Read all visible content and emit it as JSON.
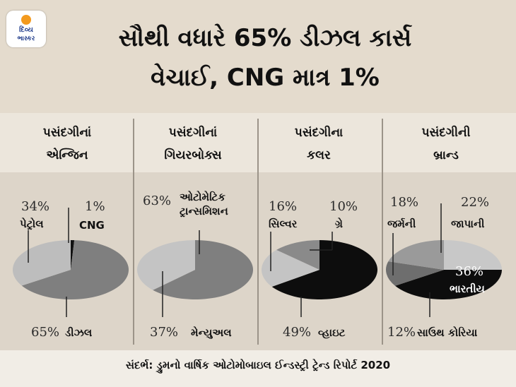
{
  "logo": {
    "line1": "દિવ્ય",
    "line2": "ભાસ્કર"
  },
  "title": {
    "line1": "સૌથી વધારે 65% ડીઝલ કાર્સ",
    "line2": "વેચાઈ, CNG માત્ર 1%"
  },
  "columns": [
    {
      "heading": [
        "પસંદગીનાં",
        "એન્જિન"
      ]
    },
    {
      "heading": [
        "પસંદગીનાં",
        "ગિયરબોક્સ"
      ]
    },
    {
      "heading": [
        "પસંદગીના",
        "કલર"
      ]
    },
    {
      "heading": [
        "પસંદગીની",
        "બ્રાન્ડ"
      ]
    }
  ],
  "source": "સંદર્ભ: ડ્રુમનો વાર્ષિક ઓટોમોબાઇલ ઈન્ડસ્ટ્રી ટ્રેન્ડ રિપોર્ટ 2020",
  "chart_data": [
    {
      "type": "pie",
      "title": "પસંદગીનાં એન્જિન",
      "slices": [
        {
          "label": "પેટ્રોલ",
          "value": 34,
          "pct_text": "34%",
          "color": "#bdbdbd"
        },
        {
          "label": "CNG",
          "value": 1,
          "pct_text": "1%",
          "color": "#111111"
        },
        {
          "label": "ડીઝલ",
          "value": 65,
          "pct_text": "65%",
          "color": "#7f7f7f"
        }
      ]
    },
    {
      "type": "pie",
      "title": "પસંદગીનાં ગિયરબોક્સ",
      "slices": [
        {
          "label": "ઓટોમેટિક ટ્રાન્સમિશન",
          "value": 63,
          "pct_text": "63%",
          "color": "#7f7f7f"
        },
        {
          "label": "મેન્યુઅલ",
          "value": 37,
          "pct_text": "37%",
          "color": "#c4c4c4"
        }
      ]
    },
    {
      "type": "pie",
      "title": "પસંદગીના કલર",
      "slices": [
        {
          "label": "સિલ્વર",
          "value": 16,
          "pct_text": "16%",
          "color": "#c4c4c4"
        },
        {
          "label": "ગ્રે",
          "value": 10,
          "pct_text": "10%",
          "color": "#8a8a8a"
        },
        {
          "label": "વ્હાઇટ",
          "value": 49,
          "pct_text": "49%",
          "color": "#0d0d0d"
        }
      ]
    },
    {
      "type": "pie",
      "title": "પસંદગીની બ્રાન્ડ",
      "slices": [
        {
          "label": "જર્મની",
          "value": 18,
          "pct_text": "18%",
          "color": "#9a9a9a"
        },
        {
          "label": "જાપાની",
          "value": 22,
          "pct_text": "22%",
          "color": "#c8c8c8"
        },
        {
          "label": "ભારતીય",
          "value": 36,
          "pct_text": "36%",
          "color": "#0d0d0d"
        },
        {
          "label": "સાઉથ કોરિયા",
          "value": 12,
          "pct_text": "12%",
          "color": "#6e6e6e"
        }
      ]
    }
  ]
}
